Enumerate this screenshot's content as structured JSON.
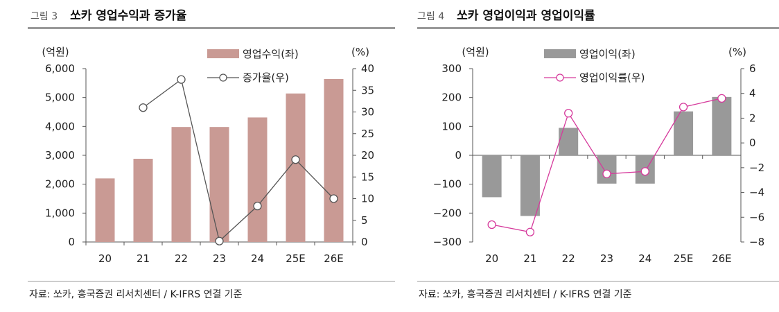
{
  "figure_left": {
    "number": "그림 3",
    "title": "쏘카 영업수익과 증가율",
    "source": "자료: 쏘카, 흥국증권 리서치센터 / K-IFRS 연결 기준"
  },
  "figure_right": {
    "number": "그림 4",
    "title": "쏘카 영업이익과 영업이익률",
    "source": "자료: 쏘카, 흥국증권 리서치센터 / K-IFRS 연결 기준"
  },
  "chart_data": [
    {
      "type": "bar",
      "categories": [
        "20",
        "21",
        "22",
        "23",
        "24",
        "25E",
        "26E"
      ],
      "series": [
        {
          "name": "영업수익(좌)",
          "type": "bar",
          "axis": "left",
          "values": [
            2200,
            2880,
            3980,
            3980,
            4310,
            5140,
            5640
          ],
          "color": "#c99a94"
        },
        {
          "name": "증가율(우)",
          "type": "line",
          "axis": "right",
          "values": [
            null,
            31,
            37.5,
            0.2,
            8.3,
            19,
            10
          ],
          "color": "#555555"
        }
      ],
      "yleft": {
        "unit": "(억원)",
        "lim": [
          0,
          6000
        ],
        "ticks": [
          "0",
          "1,000",
          "2,000",
          "3,000",
          "4,000",
          "5,000",
          "6,000"
        ]
      },
      "yright": {
        "unit": "(%)",
        "lim": [
          0,
          40
        ],
        "ticks": [
          "0",
          "5",
          "10",
          "15",
          "20",
          "25",
          "30",
          "35",
          "40"
        ]
      },
      "legend_position": "top-center"
    },
    {
      "type": "bar",
      "categories": [
        "20",
        "21",
        "22",
        "23",
        "24",
        "25E",
        "26E"
      ],
      "series": [
        {
          "name": "영업이익(좌)",
          "type": "bar",
          "axis": "left",
          "values": [
            -145,
            -210,
            95,
            -98,
            -98,
            152,
            202
          ],
          "color": "#999999"
        },
        {
          "name": "영업이익률(우)",
          "type": "line",
          "axis": "right",
          "values": [
            -6.6,
            -7.2,
            2.4,
            -2.5,
            -2.3,
            2.9,
            3.6
          ],
          "color": "#d63a9c"
        }
      ],
      "yleft": {
        "unit": "(억원)",
        "lim": [
          -300,
          300
        ],
        "ticks": [
          "−300",
          "−200",
          "−100",
          "0",
          "100",
          "200",
          "300"
        ]
      },
      "yright": {
        "unit": "(%)",
        "lim": [
          -8,
          6
        ],
        "ticks": [
          "−8",
          "−6",
          "−4",
          "−2",
          "0",
          "2",
          "4",
          "6"
        ]
      },
      "legend_position": "top-center"
    }
  ]
}
